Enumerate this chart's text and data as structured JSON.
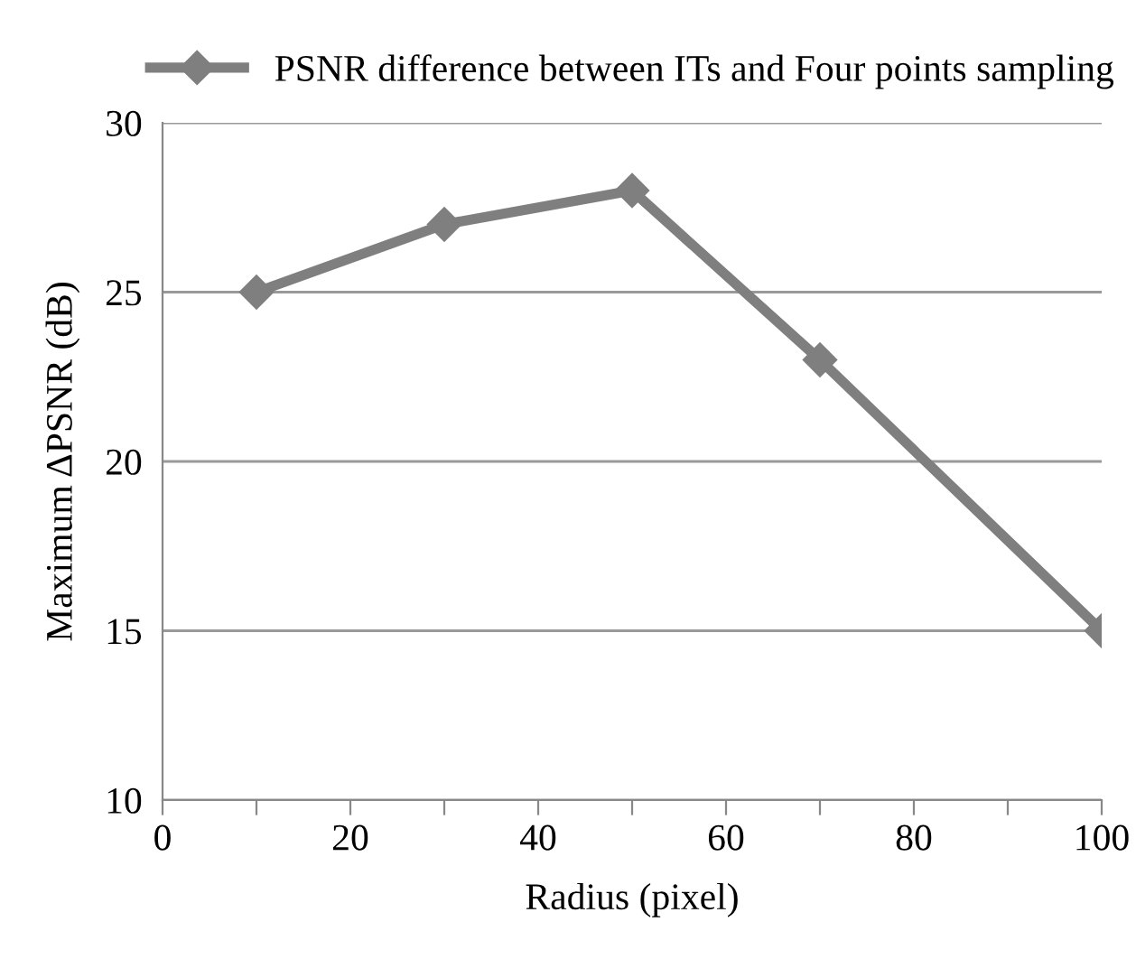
{
  "chart_data": {
    "type": "line",
    "xlabel": "Radius (pixel)",
    "ylabel": "Maximum ΔPSNR (dB)",
    "series": [
      {
        "name": "PSNR difference between ITs and Four points sampling",
        "color": "#7f7f7f",
        "x": [
          10,
          30,
          50,
          70,
          100
        ],
        "values": [
          25,
          27,
          28,
          23,
          15
        ]
      }
    ],
    "xlim": [
      0,
      100
    ],
    "xticks": [
      0,
      {
        "value": 10,
        "label": null
      },
      20,
      {
        "value": 30,
        "label": null
      },
      40,
      {
        "value": 50,
        "label": null
      },
      60,
      {
        "value": 70,
        "label": null
      },
      80,
      {
        "value": 90,
        "label": null
      },
      100
    ],
    "ylim": [
      10,
      30
    ],
    "yticks": [
      10,
      15,
      20,
      25,
      30
    ],
    "grid": "y",
    "legend": "top",
    "marker": "diamond",
    "line_style": "solid"
  }
}
